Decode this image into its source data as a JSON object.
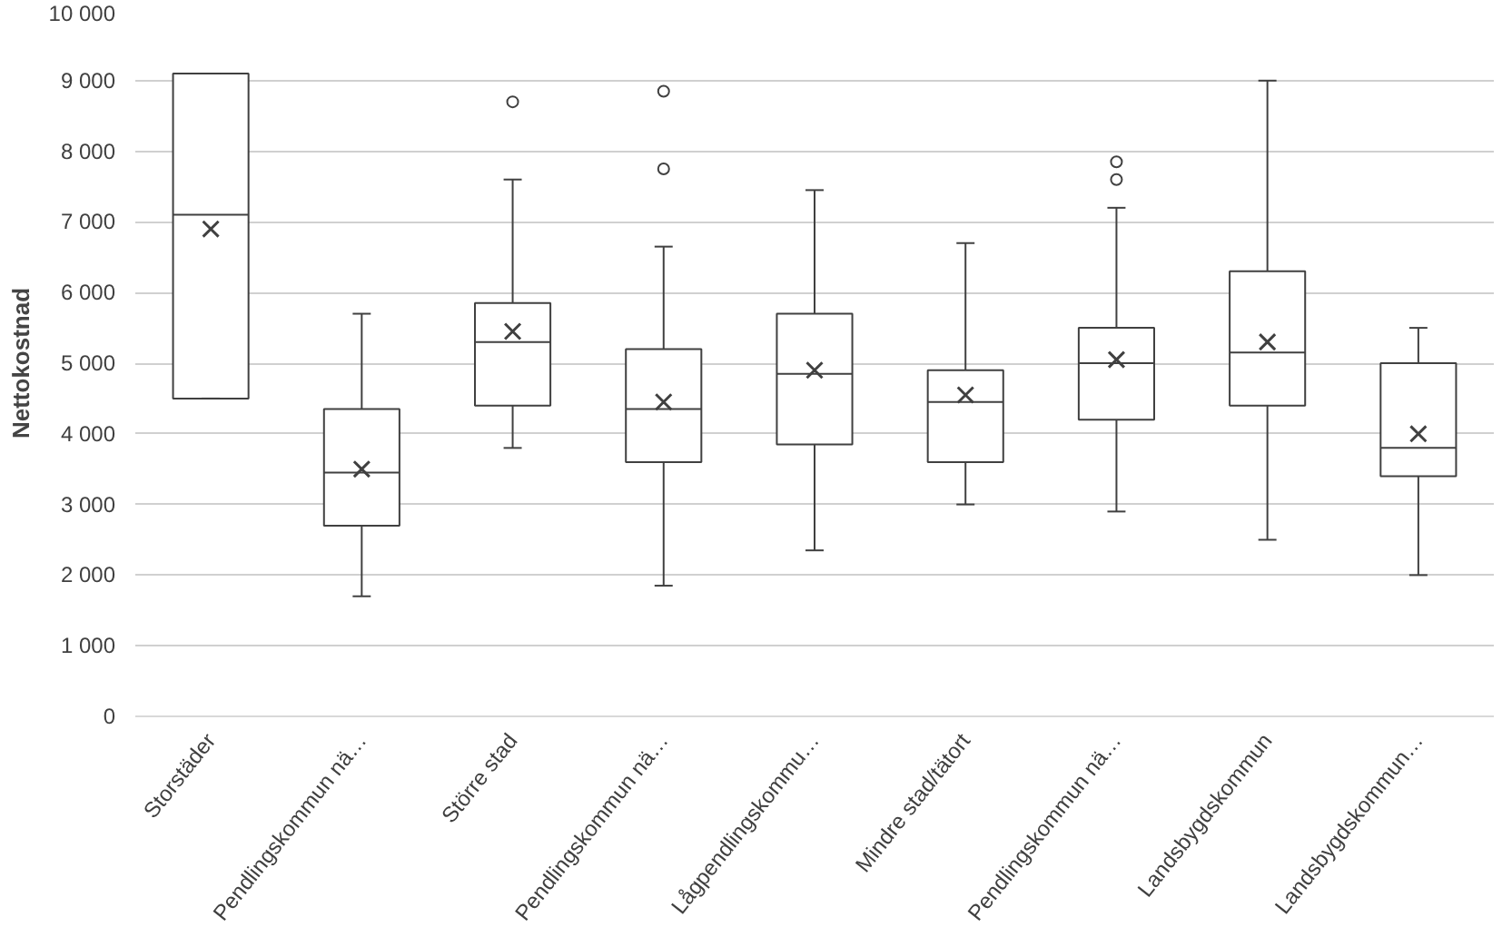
{
  "chart_data": {
    "type": "box",
    "ylabel": "Nettokostnad",
    "categories": [
      "Storstäder",
      "Pendlingskommun nä…",
      "Större stad",
      "Pendlingskommun nä…",
      "Lågpendlingskommu…",
      "Mindre stad/tätort",
      "Pendlingskommun nä…",
      "Landsbygdskommun",
      "Landsbygdskommun…"
    ],
    "boxes": [
      {
        "low": 4500,
        "q1": 4500,
        "median": 7100,
        "q3": 9100,
        "high": 9100,
        "mean": 6900
      },
      {
        "low": 1700,
        "q1": 2700,
        "median": 3450,
        "q3": 4350,
        "high": 5700,
        "mean": 3500
      },
      {
        "low": 3800,
        "q1": 4400,
        "median": 5300,
        "q3": 5850,
        "high": 7600,
        "mean": 5450,
        "outliers": [
          8700
        ]
      },
      {
        "low": 1850,
        "q1": 3600,
        "median": 4350,
        "q3": 5200,
        "high": 6650,
        "mean": 4450,
        "outliers": [
          7750,
          8850
        ]
      },
      {
        "low": 2350,
        "q1": 3850,
        "median": 4850,
        "q3": 5700,
        "high": 7450,
        "mean": 4900
      },
      {
        "low": 3000,
        "q1": 3600,
        "median": 4450,
        "q3": 4900,
        "high": 6700,
        "mean": 4550
      },
      {
        "low": 2900,
        "q1": 4200,
        "median": 5000,
        "q3": 5500,
        "high": 7200,
        "mean": 5050,
        "outliers": [
          7600,
          7850
        ]
      },
      {
        "low": 2500,
        "q1": 4400,
        "median": 5150,
        "q3": 6300,
        "high": 9000,
        "mean": 5300
      },
      {
        "low": 2000,
        "q1": 3400,
        "median": 3800,
        "q3": 5000,
        "high": 5500,
        "mean": 4000
      }
    ],
    "color": "#404040",
    "ylim": [
      0,
      10000
    ],
    "yticks": [
      {
        "value": 0,
        "label": "0"
      },
      {
        "value": 1000,
        "label": "1 000"
      },
      {
        "value": 2000,
        "label": "2 000"
      },
      {
        "value": 3000,
        "label": "3 000"
      },
      {
        "value": 4000,
        "label": "4 000"
      },
      {
        "value": 5000,
        "label": "5 000"
      },
      {
        "value": 6000,
        "label": "6 000"
      },
      {
        "value": 7000,
        "label": "7 000"
      },
      {
        "value": 8000,
        "label": "8 000"
      },
      {
        "value": 9000,
        "label": "9 000"
      },
      {
        "value": 10000,
        "label": "10 000"
      }
    ],
    "grid": "y",
    "marker": "cross"
  }
}
